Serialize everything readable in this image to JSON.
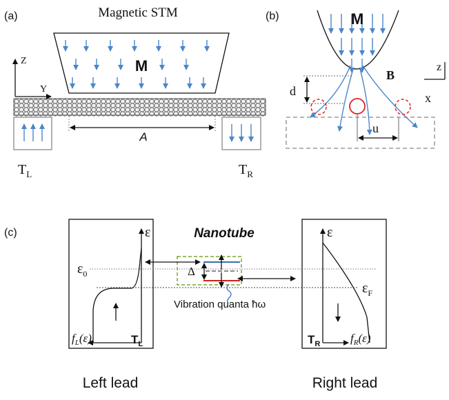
{
  "panel_a": {
    "label": "(a)",
    "title": "Magnetic STM",
    "magnet_label": "M",
    "z_axis": "Z",
    "y_axis": "Y",
    "length_label": "A",
    "left_lead": {
      "main": "T",
      "sub": "L"
    },
    "right_lead": {
      "main": "T",
      "sub": "R"
    }
  },
  "panel_b": {
    "label": "(b)",
    "tip_label": "M",
    "field_label": "B",
    "height_label": "d",
    "offset_label": "u",
    "z_axis": "z",
    "x_axis": "x"
  },
  "panel_c": {
    "label": "(c)",
    "title": "Nanotube",
    "splitting": "Δ",
    "vibration": "Vibration quanta ħω",
    "dot_level": {
      "main": "ε",
      "sub": "0"
    },
    "fermi_level": {
      "main": "ε",
      "sub": "F"
    },
    "left": {
      "energy_axis": "ε",
      "distribution": {
        "main": "f",
        "sub": "L",
        "arg": "(ε)"
      },
      "lead": {
        "main": "T",
        "sub": "L"
      },
      "caption": "Left lead"
    },
    "right": {
      "energy_axis": "ε",
      "distribution": {
        "main": "f",
        "sub": "R",
        "arg": "(ε)"
      },
      "lead": {
        "main": "T",
        "sub": "R"
      },
      "caption": "Right lead"
    }
  }
}
